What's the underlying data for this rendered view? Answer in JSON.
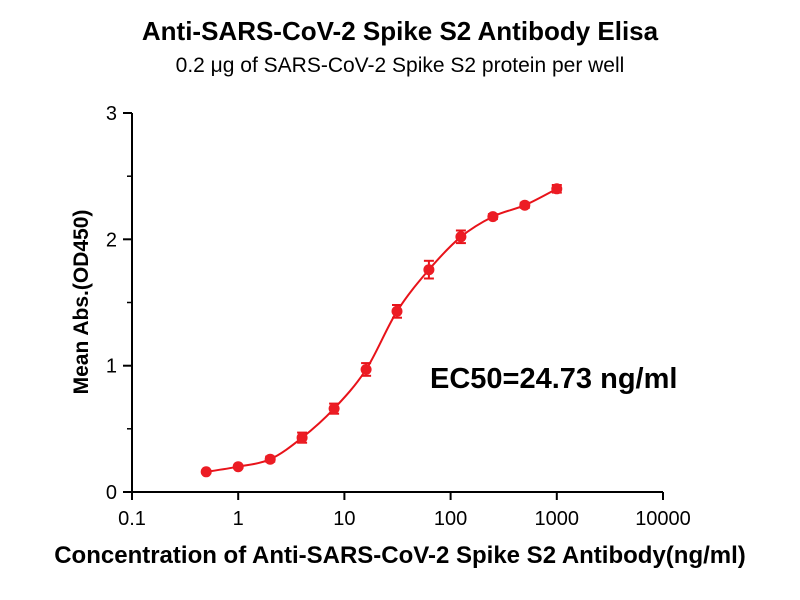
{
  "title": "Anti-SARS-CoV-2 Spike S2 Antibody Elisa",
  "subtitle": "0.2 μg of SARS-CoV-2 Spike S2 protein per well",
  "chart_data": {
    "type": "scatter",
    "x": [
      0.5,
      1,
      2,
      4,
      8,
      16,
      31.25,
      62.5,
      125,
      250,
      500,
      1000
    ],
    "y": [
      0.16,
      0.2,
      0.26,
      0.43,
      0.66,
      0.97,
      1.43,
      1.76,
      2.02,
      2.18,
      2.27,
      2.4
    ],
    "yerr": [
      0.01,
      0.01,
      0.02,
      0.04,
      0.04,
      0.05,
      0.05,
      0.07,
      0.05,
      0.02,
      0.02,
      0.03
    ],
    "xlabel": "Concentration of  Anti-SARS-CoV-2 Spike S2 Antibody(ng/ml)",
    "ylabel": "Mean Abs.(OD450)",
    "x_scale": "log",
    "xlim": [
      0.1,
      10000
    ],
    "ylim": [
      0,
      3
    ],
    "x_ticks": [
      0.1,
      1,
      10,
      100,
      1000,
      10000
    ],
    "x_tick_labels": [
      "0.1",
      "1",
      "10",
      "100",
      "1000",
      "10000"
    ],
    "y_ticks": [
      0,
      1,
      2,
      3
    ],
    "y_minor_ticks": [
      0.5,
      1.5,
      2.5
    ],
    "annotation": "EC50=24.73 ng/ml",
    "legend": "none",
    "grid": "off",
    "marker_color": "#ec1c24",
    "line_color": "#e8131a",
    "axis_color": "#000000"
  }
}
